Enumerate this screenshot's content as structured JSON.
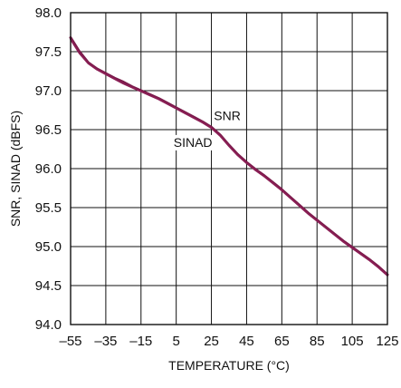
{
  "chart_data": {
    "type": "line",
    "title": "",
    "xlabel": "TEMPERATURE (°C)",
    "ylabel": "SNR, SINAD (dBFS)",
    "xlim": [
      -55,
      125
    ],
    "ylim": [
      94.0,
      98.0
    ],
    "x_ticks": [
      "–55",
      "–35",
      "–15",
      "5",
      "25",
      "45",
      "65",
      "85",
      "105",
      "125"
    ],
    "y_ticks": [
      "98.0",
      "97.5",
      "97.0",
      "96.5",
      "96.0",
      "95.5",
      "95.0",
      "94.5",
      "94.0"
    ],
    "grid": true,
    "series": [
      {
        "name": "SNR",
        "color": "#7a1a4a",
        "x": [
          -55,
          -50,
          -45,
          -40,
          -35,
          -30,
          -25,
          -20,
          -15,
          -10,
          -5,
          0,
          5,
          10,
          15,
          20,
          25,
          30,
          35,
          40,
          45,
          50,
          55,
          60,
          65,
          70,
          75,
          80,
          85,
          90,
          95,
          100,
          105,
          110,
          115,
          120,
          125
        ],
        "values": [
          97.68,
          97.5,
          97.36,
          97.28,
          97.22,
          97.16,
          97.11,
          97.05,
          97.0,
          96.95,
          96.9,
          96.84,
          96.78,
          96.72,
          96.66,
          96.6,
          96.53,
          96.43,
          96.3,
          96.18,
          96.08,
          95.99,
          95.91,
          95.82,
          95.73,
          95.63,
          95.53,
          95.43,
          95.34,
          95.25,
          95.16,
          95.07,
          94.99,
          94.91,
          94.83,
          94.74,
          94.64
        ]
      },
      {
        "name": "SINAD",
        "color": "#8a1f55",
        "x": [
          -55,
          -50,
          -45,
          -40,
          -35,
          -30,
          -25,
          -20,
          -15,
          -10,
          -5,
          0,
          5,
          10,
          15,
          20,
          25,
          30,
          35,
          40,
          45,
          50,
          55,
          60,
          65,
          70,
          75,
          80,
          85,
          90,
          95,
          100,
          105,
          110,
          115,
          120,
          125
        ],
        "values": [
          97.66,
          97.48,
          97.35,
          97.27,
          97.21,
          97.15,
          97.09,
          97.04,
          96.99,
          96.94,
          96.89,
          96.83,
          96.77,
          96.71,
          96.65,
          96.59,
          96.52,
          96.42,
          96.29,
          96.17,
          96.07,
          95.98,
          95.9,
          95.81,
          95.72,
          95.62,
          95.52,
          95.42,
          95.33,
          95.24,
          95.15,
          95.06,
          94.98,
          94.9,
          94.82,
          94.73,
          94.63
        ]
      }
    ],
    "annotations": [
      {
        "text": "SNR",
        "x": 34,
        "y": 96.62
      },
      {
        "text": "SINAD",
        "x": 14.5,
        "y": 96.28
      }
    ]
  }
}
